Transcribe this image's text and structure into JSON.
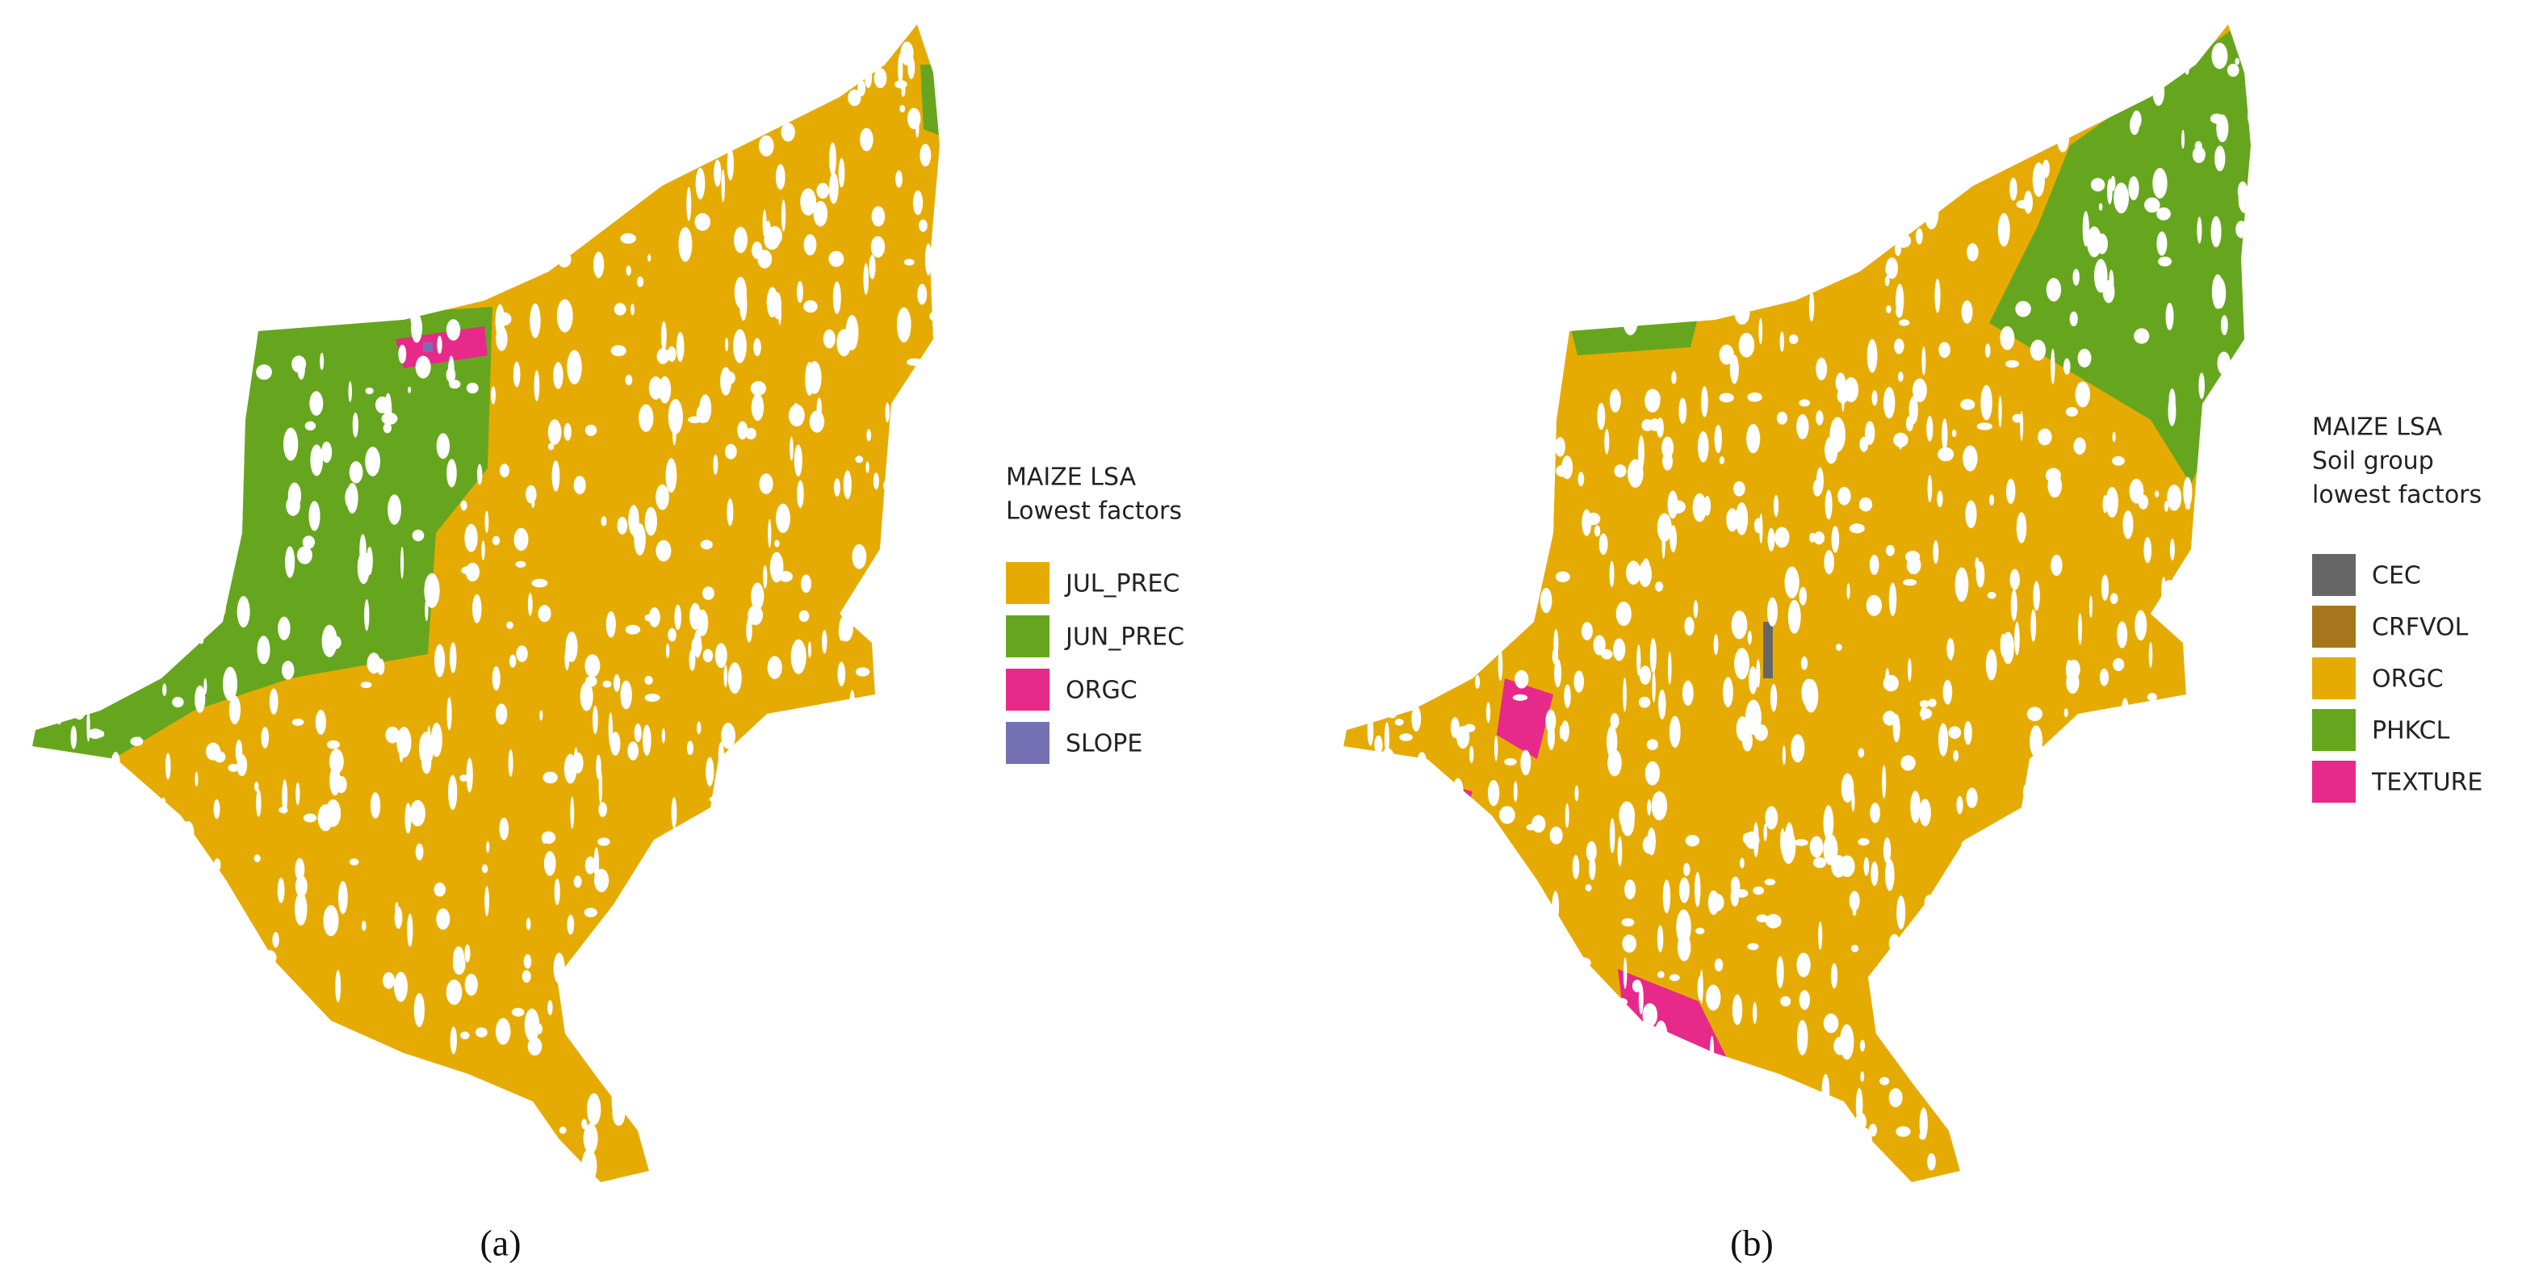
{
  "panels": [
    {
      "legend": {
        "title": [
          "MAIZE LSA",
          "Lowest factors"
        ],
        "items": [
          {
            "label": "JUL_PREC",
            "color": "#e6ab02"
          },
          {
            "label": "JUN_PREC",
            "color": "#66a61e"
          },
          {
            "label": "ORGC",
            "color": "#e7298a"
          },
          {
            "label": "SLOPE",
            "color": "#7570b3"
          }
        ]
      },
      "caption": "(a)"
    },
    {
      "legend": {
        "title": [
          "MAIZE LSA",
          "Soil group",
          "lowest factors"
        ],
        "items": [
          {
            "label": "CEC",
            "color": "#666666"
          },
          {
            "label": "CRFVOL",
            "color": "#a6761d"
          },
          {
            "label": "ORGC",
            "color": "#e6ab02"
          },
          {
            "label": "PHKCL",
            "color": "#66a61e"
          },
          {
            "label": "TEXTURE",
            "color": "#e7298a"
          }
        ]
      },
      "caption": "(b)"
    }
  ]
}
